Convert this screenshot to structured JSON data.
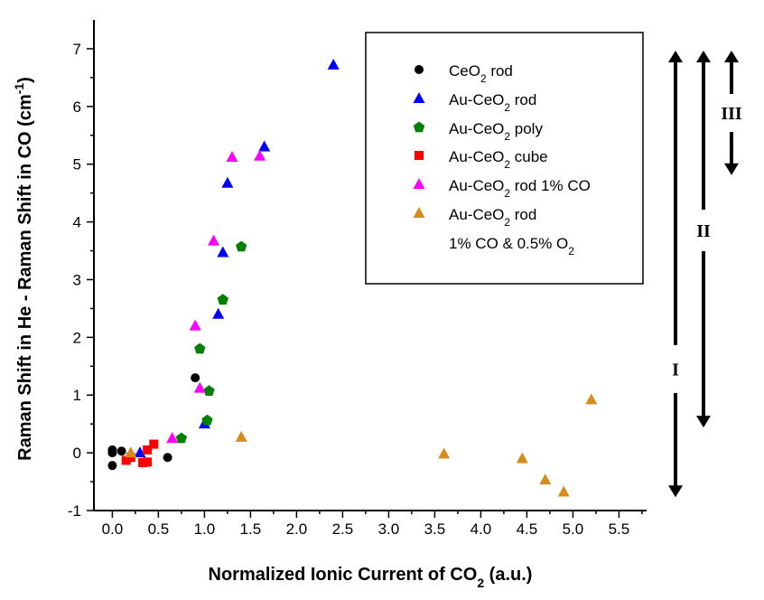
{
  "chart_data": {
    "type": "scatter",
    "xlabel": {
      "main": "Normalized Ionic Current of CO",
      "sub": "2",
      "tail": " (a.u.)"
    },
    "ylabel": {
      "main": "Raman Shift in He - Raman Shift in CO (cm",
      "sup": "-1",
      "tail": ")"
    },
    "xlim": [
      -0.2,
      5.8
    ],
    "ylim": [
      -1,
      7.5
    ],
    "xticks": [
      "0.0",
      "0.5",
      "1.0",
      "1.5",
      "2.0",
      "2.5",
      "3.0",
      "3.5",
      "4.0",
      "4.5",
      "5.0",
      "5.5"
    ],
    "yticks": [
      "-1",
      "0",
      "1",
      "2",
      "3",
      "4",
      "5",
      "6",
      "7"
    ],
    "series": [
      {
        "name": {
          "pre": "CeO",
          "sub": "2",
          "post": " rod"
        },
        "marker": "circle",
        "color": "#000000",
        "points": [
          [
            0.0,
            0.0
          ],
          [
            0.0,
            0.05
          ],
          [
            0.0,
            -0.22
          ],
          [
            0.1,
            0.03
          ],
          [
            0.6,
            -0.08
          ],
          [
            0.9,
            1.3
          ]
        ]
      },
      {
        "name": {
          "pre": "Au-CeO",
          "sub": "2",
          "post": " rod"
        },
        "marker": "triangle",
        "color": "#0000ff",
        "points": [
          [
            0.3,
            0.0
          ],
          [
            1.0,
            0.5
          ],
          [
            1.15,
            2.4
          ],
          [
            1.2,
            3.47
          ],
          [
            1.25,
            4.67
          ],
          [
            1.65,
            5.3
          ],
          [
            2.4,
            6.72
          ]
        ]
      },
      {
        "name": {
          "pre": "Au-CeO",
          "sub": "2",
          "post": " poly"
        },
        "marker": "pentagon",
        "color": "#008000",
        "points": [
          [
            0.75,
            0.25
          ],
          [
            0.95,
            1.8
          ],
          [
            1.03,
            0.56
          ],
          [
            1.05,
            1.07
          ],
          [
            1.2,
            2.65
          ],
          [
            1.4,
            3.57
          ]
        ]
      },
      {
        "name": {
          "pre": "Au-CeO",
          "sub": "2",
          "post": " cube"
        },
        "marker": "square",
        "color": "#ff0000",
        "points": [
          [
            0.15,
            -0.13
          ],
          [
            0.2,
            -0.08
          ],
          [
            0.33,
            -0.17
          ],
          [
            0.38,
            0.05
          ],
          [
            0.38,
            -0.16
          ],
          [
            0.45,
            0.15
          ]
        ]
      },
      {
        "name": {
          "pre": "Au-CeO",
          "sub": "2",
          "post": " rod 1% CO"
        },
        "marker": "triangle",
        "color": "#ff00ff",
        "points": [
          [
            0.65,
            0.25
          ],
          [
            0.9,
            2.2
          ],
          [
            0.95,
            1.12
          ],
          [
            1.1,
            3.67
          ],
          [
            1.3,
            5.12
          ],
          [
            1.6,
            5.14
          ]
        ]
      },
      {
        "name": {
          "pre": "Au-CeO",
          "sub": "2",
          "post": " rod",
          "line2pre": "1% CO & 0.5% O",
          "line2sub": "2"
        },
        "marker": "triangle",
        "color": "#d88a1c",
        "points": [
          [
            0.2,
            0.0
          ],
          [
            1.4,
            0.27
          ],
          [
            3.6,
            -0.02
          ],
          [
            4.45,
            -0.1
          ],
          [
            4.7,
            -0.47
          ],
          [
            4.9,
            -0.68
          ],
          [
            5.2,
            0.92
          ]
        ]
      }
    ],
    "legend_position": "top-right",
    "regions": [
      {
        "label": "I",
        "y_from": -0.8,
        "y_to": 7.0
      },
      {
        "label": "II",
        "y_from": 0.5,
        "y_to": 7.0
      },
      {
        "label": "III",
        "y_from": 5.0,
        "y_to": 7.0
      }
    ]
  }
}
